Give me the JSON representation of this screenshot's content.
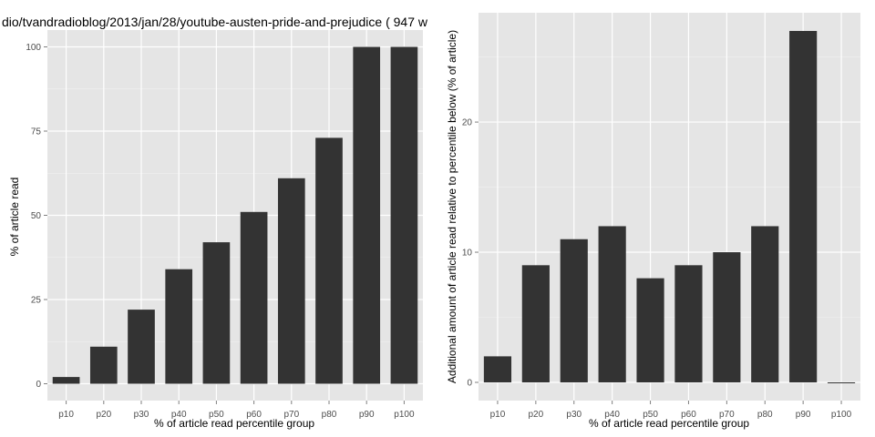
{
  "chart_data": [
    {
      "type": "bar",
      "title": "dio/tvandradioblog/2013/jan/28/youtube-austen-pride-and-prejudice ( 947 w",
      "xlabel": "% of article read percentile group",
      "ylabel": "% of article read",
      "categories": [
        "p10",
        "p20",
        "p30",
        "p40",
        "p50",
        "p60",
        "p70",
        "p80",
        "p90",
        "p100"
      ],
      "values": [
        2,
        11,
        22,
        34,
        42,
        51,
        61,
        73,
        100,
        100
      ],
      "ylim": [
        -5,
        105
      ],
      "yticks": [
        0,
        25,
        50,
        75,
        100
      ],
      "ytick_labels": [
        "0",
        "25",
        "50",
        "75",
        "100"
      ],
      "bar_color": "#333333",
      "panel_color": "#e5e5e5",
      "grid": true
    },
    {
      "type": "bar",
      "title": "",
      "xlabel": "% of article read percentile group",
      "ylabel": "Additional amount of article read relative to percentile below (% of article)",
      "categories": [
        "p10",
        "p20",
        "p30",
        "p40",
        "p50",
        "p60",
        "p70",
        "p80",
        "p90",
        "p100"
      ],
      "values": [
        2,
        9,
        11,
        12,
        8,
        9,
        10,
        12,
        27,
        0
      ],
      "ylim": [
        -1.4,
        28.4
      ],
      "yticks": [
        0,
        10,
        20
      ],
      "ytick_labels": [
        "0",
        "10",
        "20"
      ],
      "bar_color": "#333333",
      "panel_color": "#e5e5e5",
      "grid": true
    }
  ]
}
